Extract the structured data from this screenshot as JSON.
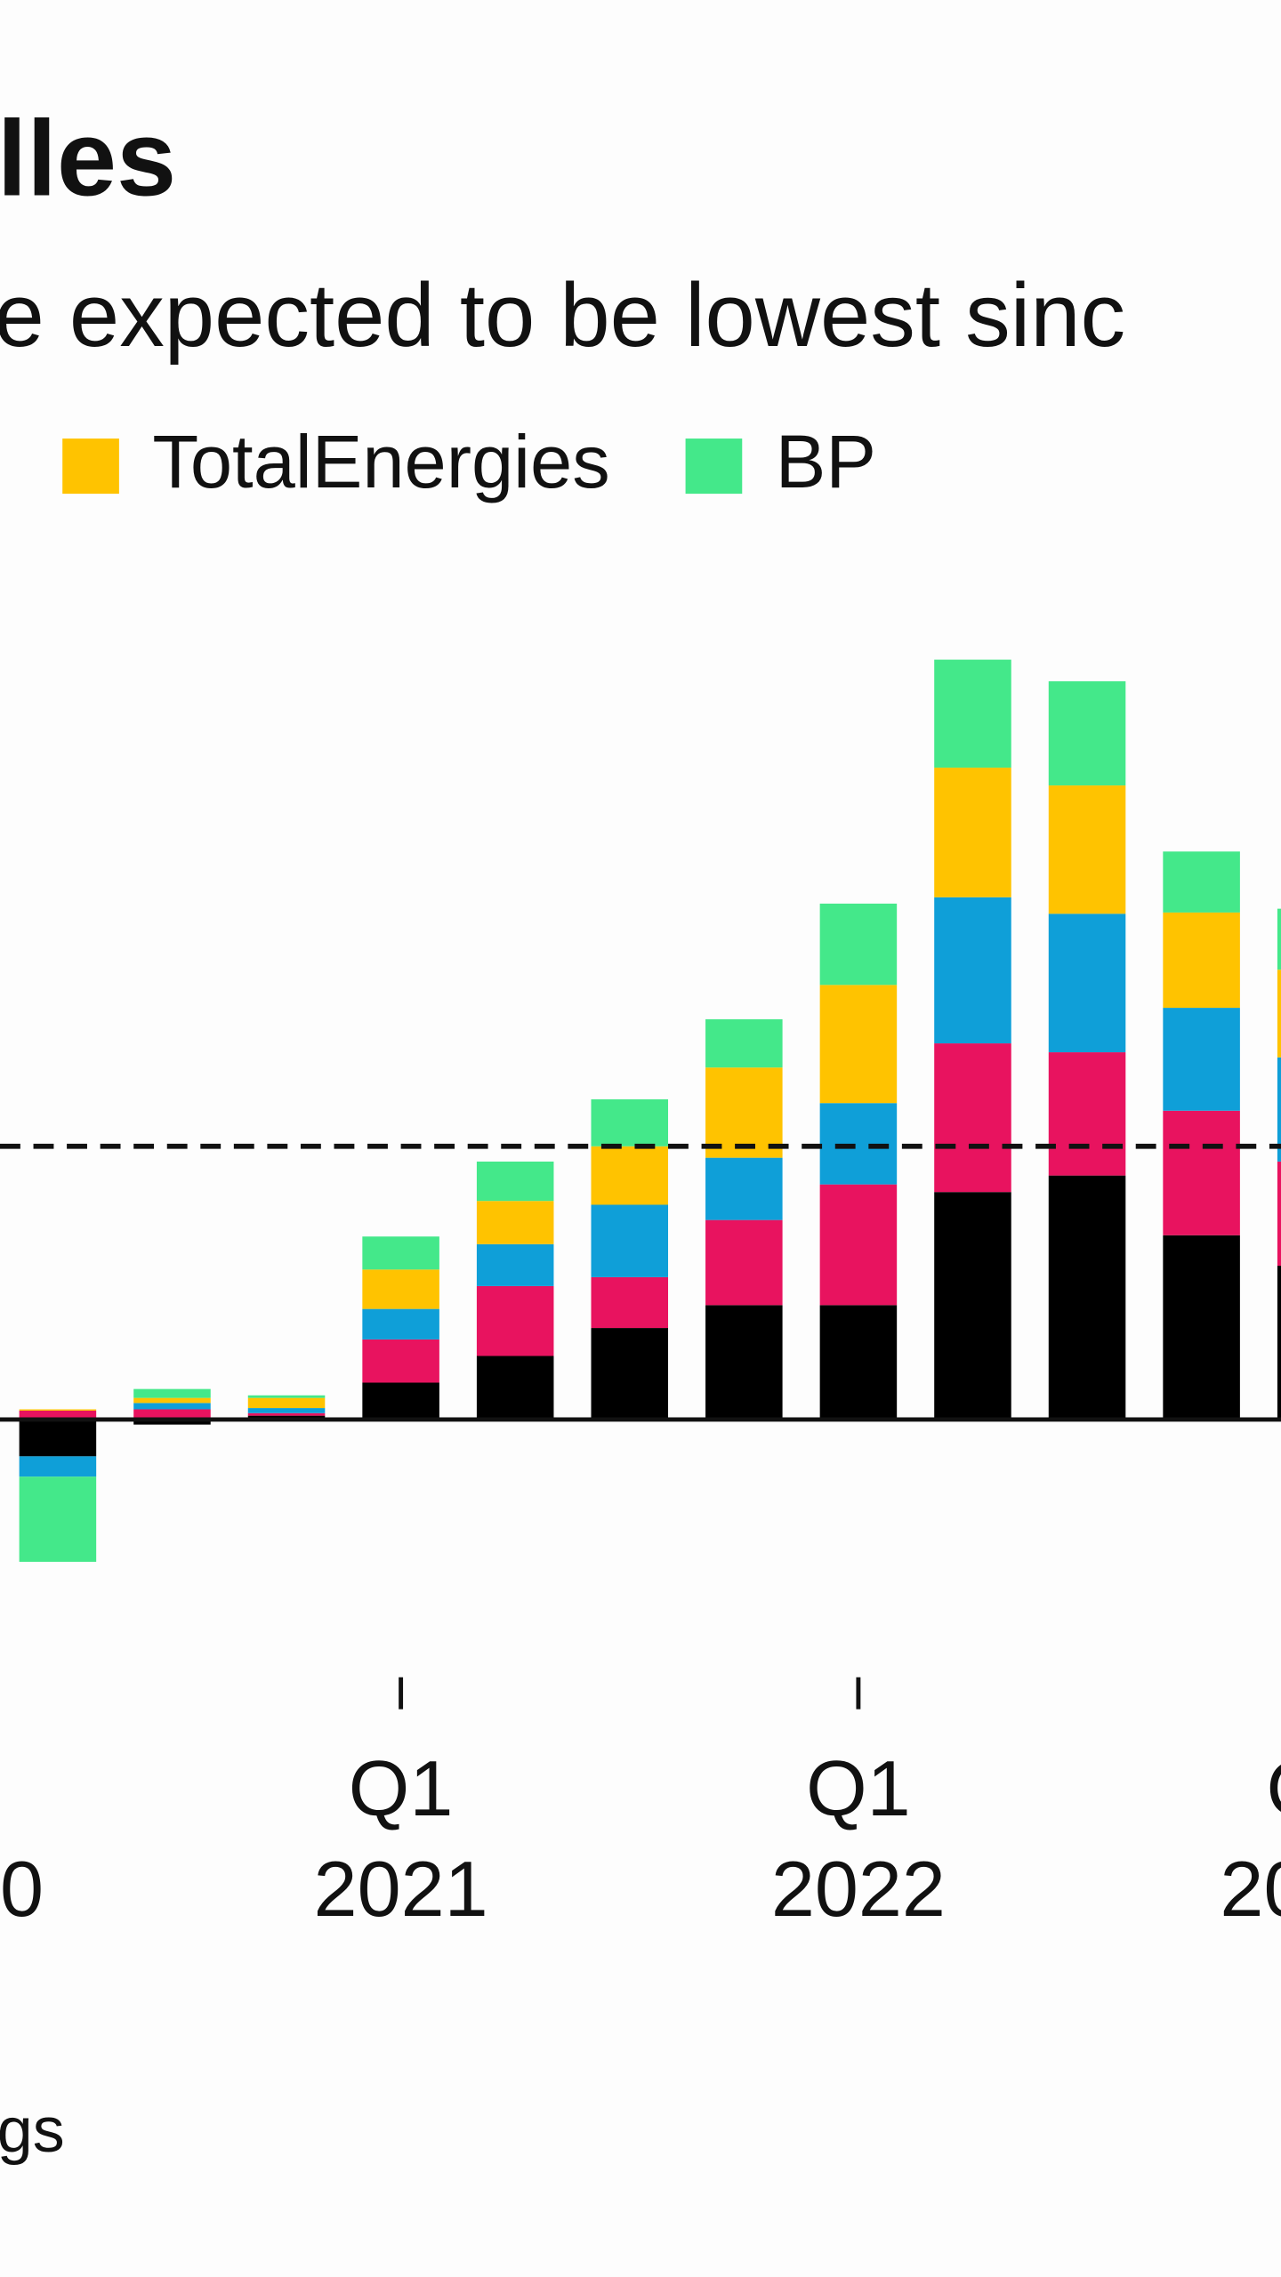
{
  "chart_data": {
    "type": "stacked_bar",
    "title": "lles",
    "subtitle": "e expected to be lowest sinc",
    "source": "gs",
    "categories": [
      null,
      null,
      null,
      null,
      "Q1",
      null,
      null,
      null,
      "Q1",
      null,
      null,
      null,
      "Q"
    ],
    "category_years": [
      "0",
      null,
      null,
      null,
      "2021",
      null,
      null,
      null,
      "2022",
      null,
      null,
      null,
      "20"
    ],
    "series": [
      {
        "color": "#000000",
        "values": [
          null,
          -2.9,
          -0.4,
          0.3,
          2.9,
          5.0,
          7.2,
          9.0,
          9.0,
          17.9,
          19.2,
          14.5,
          12.1
        ]
      },
      {
        "color": "#e8135f",
        "values": [
          null,
          0.7,
          0.8,
          0.2,
          3.4,
          5.5,
          4.0,
          6.7,
          9.5,
          11.7,
          9.7,
          9.8,
          8.2
        ]
      },
      {
        "color": "#0f9fd8",
        "values": [
          null,
          -1.6,
          0.5,
          0.4,
          2.4,
          3.3,
          5.7,
          4.9,
          6.4,
          11.5,
          10.9,
          8.1,
          8.2
        ]
      },
      {
        "name": "TotalEnergies",
        "color": "#ffc300",
        "values": [
          null,
          0.1,
          0.4,
          0.8,
          3.1,
          3.4,
          4.6,
          7.1,
          9.3,
          10.2,
          10.1,
          7.5,
          6.9
        ]
      },
      {
        "name": "BP",
        "color": "#44e88a",
        "values": [
          null,
          -6.7,
          0.7,
          0.2,
          2.6,
          3.1,
          3.7,
          3.8,
          6.4,
          8.5,
          8.2,
          4.8,
          4.8
        ]
      }
    ],
    "ylim": [
      -14,
      66
    ],
    "reference_line": 21.5
  }
}
